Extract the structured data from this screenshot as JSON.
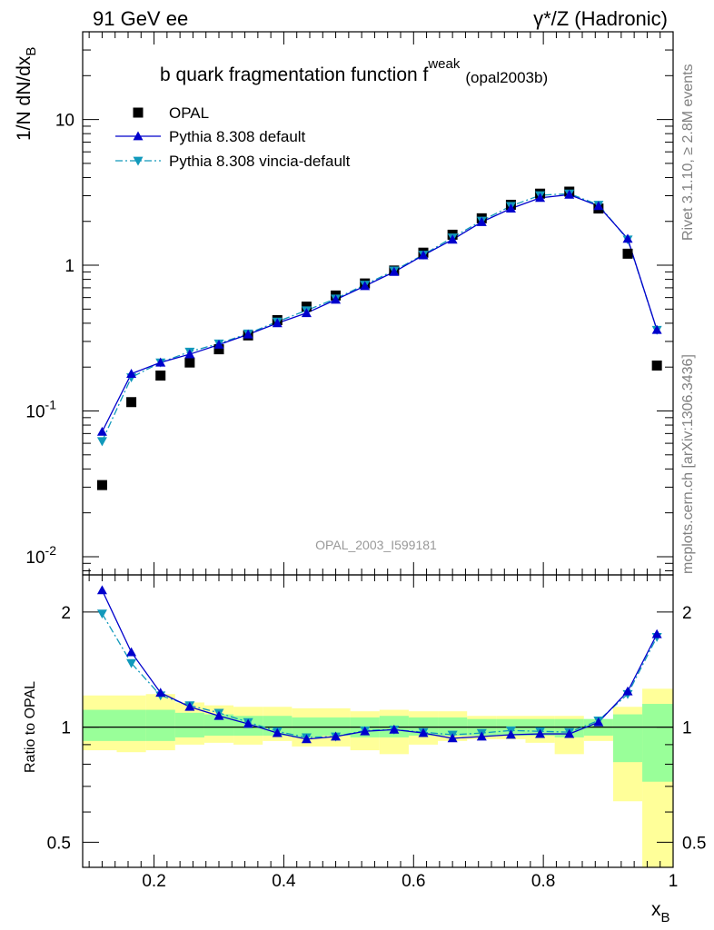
{
  "header": {
    "left": "91 GeV ee",
    "right": "γ*/Z (Hadronic)"
  },
  "side_labels": {
    "rivet": "Rivet 3.1.10, ≥ 2.8M events",
    "mcplots": "mcplots.cern.ch [arXiv:1306.3436]"
  },
  "chart_data": {
    "type": "line",
    "title": "b quark fragmentation function f^weak (opal2003b)",
    "title_main": "b quark fragmentation function f",
    "title_sup": "weak",
    "title_sub": "(opal2003b)",
    "analysis_label": "OPAL_2003_I599181",
    "xlabel": "x_B",
    "xlabel_main": "x",
    "xlabel_sub": "B",
    "ylabel": "1/N dN/dx_B",
    "ylabel_main": "1/N dN/dx",
    "ylabel_sub": "B",
    "xlim": [
      0.09,
      1.0
    ],
    "x_ticks": [
      "0.2",
      "0.4",
      "0.6",
      "0.8",
      "1"
    ],
    "top_panel": {
      "yscale": "log",
      "ylim": [
        0.0075,
        40
      ],
      "y_ticks": [
        "10^-2",
        "10^-1",
        "1",
        "10"
      ],
      "legend_position": "top-left",
      "x": [
        0.12,
        0.165,
        0.21,
        0.255,
        0.3,
        0.345,
        0.39,
        0.435,
        0.48,
        0.525,
        0.57,
        0.615,
        0.66,
        0.705,
        0.75,
        0.795,
        0.84,
        0.885,
        0.93,
        0.975
      ],
      "series": [
        {
          "name": "OPAL",
          "style": "data",
          "color": "#000000",
          "values": [
            0.031,
            0.115,
            0.175,
            0.215,
            0.265,
            0.33,
            0.42,
            0.52,
            0.62,
            0.75,
            0.92,
            1.22,
            1.62,
            2.1,
            2.6,
            3.1,
            3.2,
            2.45,
            1.2,
            0.205
          ]
        },
        {
          "name": "Pythia 8.308 default",
          "style": "solid-up-triangle",
          "color": "#0000cc",
          "values": [
            0.072,
            0.18,
            0.215,
            0.245,
            0.285,
            0.335,
            0.4,
            0.47,
            0.58,
            0.72,
            0.9,
            1.17,
            1.5,
            1.98,
            2.45,
            2.9,
            3.05,
            2.55,
            1.52,
            0.36
          ]
        },
        {
          "name": "Pythia 8.308 vincia-default",
          "style": "dashdot-down-triangle",
          "color": "#1199bb",
          "values": [
            0.062,
            0.17,
            0.215,
            0.255,
            0.29,
            0.34,
            0.41,
            0.49,
            0.59,
            0.735,
            0.92,
            1.18,
            1.55,
            2.02,
            2.55,
            3.02,
            3.1,
            2.6,
            1.5,
            0.36
          ]
        }
      ]
    },
    "ratio_panel": {
      "ylabel": "Ratio to OPAL",
      "yscale": "log",
      "ylim": [
        0.43,
        2.5
      ],
      "y_ticks": [
        "0.5",
        "1",
        "2"
      ],
      "x": [
        0.12,
        0.165,
        0.21,
        0.255,
        0.3,
        0.345,
        0.39,
        0.435,
        0.48,
        0.525,
        0.57,
        0.615,
        0.66,
        0.705,
        0.75,
        0.795,
        0.84,
        0.885,
        0.93,
        0.975
      ],
      "series": [
        {
          "name": "Pythia 8.308 default",
          "color": "#0000cc",
          "values": [
            2.28,
            1.57,
            1.23,
            1.13,
            1.07,
            1.02,
            0.965,
            0.93,
            0.945,
            0.975,
            0.985,
            0.965,
            0.935,
            0.945,
            0.955,
            0.96,
            0.96,
            1.03,
            1.24,
            1.75
          ]
        },
        {
          "name": "Pythia 8.308 vincia-default",
          "color": "#1199bb",
          "values": [
            1.98,
            1.47,
            1.21,
            1.14,
            1.09,
            1.03,
            0.975,
            0.94,
            0.945,
            0.98,
            0.985,
            0.97,
            0.955,
            0.965,
            0.98,
            0.975,
            0.97,
            1.04,
            1.22,
            1.72
          ]
        }
      ],
      "band_edges": [
        0.09,
        0.1425,
        0.1875,
        0.2325,
        0.2775,
        0.3225,
        0.3675,
        0.4125,
        0.4575,
        0.5025,
        0.5475,
        0.5925,
        0.6375,
        0.6825,
        0.7275,
        0.7725,
        0.8175,
        0.8625,
        0.9075,
        0.9525,
        1.0
      ],
      "stat_band": [
        [
          0.92,
          1.11
        ],
        [
          0.92,
          1.11
        ],
        [
          0.92,
          1.11
        ],
        [
          0.94,
          1.09
        ],
        [
          0.95,
          1.08
        ],
        [
          0.95,
          1.07
        ],
        [
          0.95,
          1.07
        ],
        [
          0.94,
          1.06
        ],
        [
          0.95,
          1.06
        ],
        [
          0.94,
          1.06
        ],
        [
          0.94,
          1.07
        ],
        [
          0.95,
          1.06
        ],
        [
          0.95,
          1.06
        ],
        [
          0.95,
          1.05
        ],
        [
          0.95,
          1.05
        ],
        [
          0.95,
          1.05
        ],
        [
          0.94,
          1.05
        ],
        [
          0.95,
          1.05
        ],
        [
          0.81,
          1.08
        ],
        [
          0.72,
          1.15
        ]
      ],
      "total_band": [
        [
          0.87,
          1.21
        ],
        [
          0.86,
          1.21
        ],
        [
          0.87,
          1.22
        ],
        [
          0.9,
          1.16
        ],
        [
          0.91,
          1.14
        ],
        [
          0.9,
          1.13
        ],
        [
          0.92,
          1.13
        ],
        [
          0.89,
          1.12
        ],
        [
          0.89,
          1.12
        ],
        [
          0.87,
          1.1
        ],
        [
          0.85,
          1.11
        ],
        [
          0.9,
          1.1
        ],
        [
          0.92,
          1.1
        ],
        [
          0.93,
          1.07
        ],
        [
          0.93,
          1.07
        ],
        [
          0.91,
          1.07
        ],
        [
          0.85,
          1.07
        ],
        [
          0.92,
          1.04
        ],
        [
          0.64,
          1.13
        ],
        [
          0.35,
          1.26
        ]
      ]
    }
  }
}
